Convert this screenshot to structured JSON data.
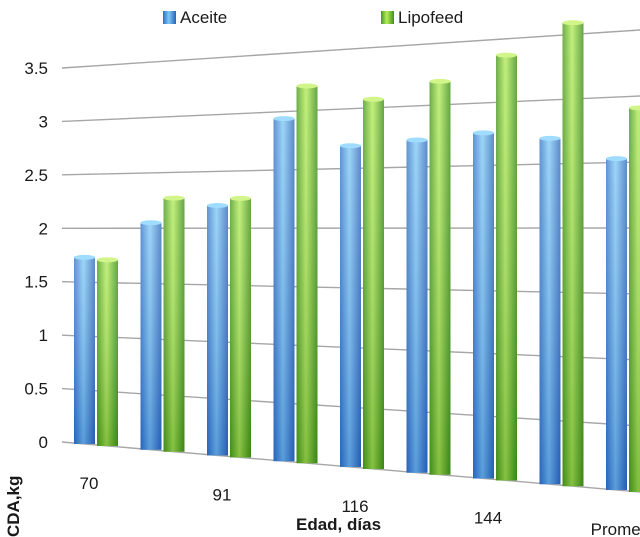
{
  "chart_data": {
    "type": "bar",
    "categories": [
      "70",
      "",
      "91",
      "",
      "116",
      "",
      "144",
      "",
      "Promedio"
    ],
    "series": [
      {
        "name": "Aceite",
        "color": "#3f8fe0",
        "values": [
          1.73,
          2.05,
          2.2,
          2.94,
          2.69,
          2.72,
          2.76,
          2.7,
          2.53
        ]
      },
      {
        "name": "Lipofeed",
        "color": "#6fc23a",
        "values": [
          1.71,
          2.27,
          2.26,
          3.21,
          3.07,
          3.19,
          3.37,
          3.59,
          2.91
        ]
      }
    ],
    "xlabel": "Edad, días",
    "ylabel": "CDA,kg",
    "ylim": [
      0,
      3.5
    ],
    "yticks": [
      "0",
      "0.5",
      "1",
      "1.5",
      "2",
      "2.5",
      "3",
      "3.5"
    ],
    "grid": true,
    "legend": "top-center"
  }
}
